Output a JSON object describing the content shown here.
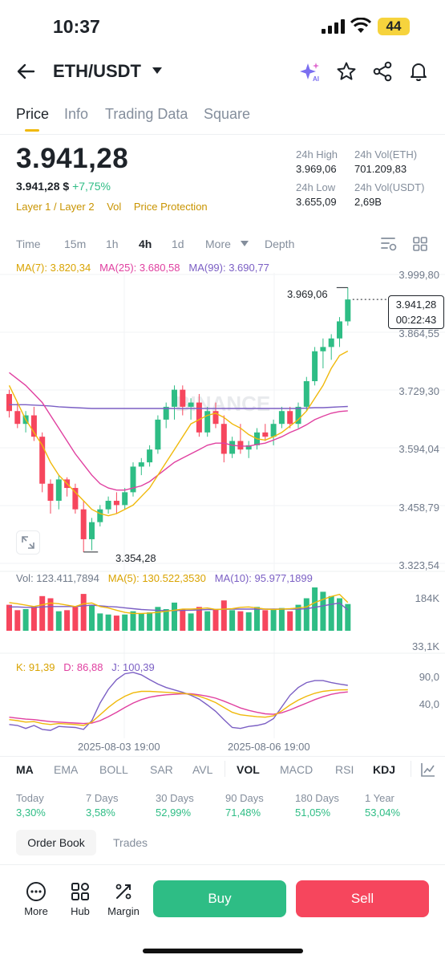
{
  "status_bar": {
    "time": "10:37",
    "battery": "44"
  },
  "header": {
    "pair": "ETH/USDT"
  },
  "tabs": [
    {
      "label": "Price",
      "active": true
    },
    {
      "label": "Info",
      "active": false
    },
    {
      "label": "Trading Data",
      "active": false
    },
    {
      "label": "Square",
      "active": false
    }
  ],
  "price": {
    "last": "3.941,28",
    "fiat": "3.941,28 $",
    "change": "+7,75%",
    "tags": [
      "Layer 1 / Layer 2",
      "Vol",
      "Price Protection"
    ]
  },
  "stats": {
    "high_label": "24h High",
    "high": "3.969,06",
    "vol_eth_label": "24h Vol(ETH)",
    "vol_eth": "701.209,83",
    "low_label": "24h Low",
    "low": "3.655,09",
    "vol_usdt_label": "24h Vol(USDT)",
    "vol_usdt": "2,69B"
  },
  "intervals": [
    "Time",
    "15m",
    "1h",
    "4h",
    "1d",
    "More",
    "Depth"
  ],
  "active_interval": "4h",
  "ma_legend": {
    "ma7": "MA(7): 3.820,34",
    "ma25": "MA(25): 3.680,58",
    "ma99": "MA(99): 3.690,77"
  },
  "vol_legend": {
    "vol": "Vol: 123.411,7894",
    "ma5": "MA(5): 130.522,3530",
    "ma10": "MA(10): 95.977,1899"
  },
  "kdj_legend": {
    "k": "K: 91,39",
    "d": "D: 86,88",
    "j": "J: 100,39"
  },
  "price_axis": [
    "3.999,80",
    "3.864,55",
    "3.729,30",
    "3.594,04",
    "3.458,79",
    "3.323,54"
  ],
  "vol_axis": [
    "184K",
    "33,1K"
  ],
  "kdj_axis": [
    "90,0",
    "40,0"
  ],
  "time_axis": [
    "2025-08-03 19:00",
    "2025-08-06 19:00"
  ],
  "chart_labels": {
    "high_mark": "3.969,06",
    "low_mark": "3.354,28",
    "current_price": "3.941,28",
    "countdown": "00:22:43"
  },
  "watermark": "BINANCE",
  "indicators": [
    "MA",
    "EMA",
    "BOLL",
    "SAR",
    "AVL",
    "VOL",
    "MACD",
    "RSI",
    "KDJ"
  ],
  "indicators_active": [
    "MA",
    "VOL",
    "KDJ"
  ],
  "performance": [
    {
      "label": "Today",
      "value": "3,30%"
    },
    {
      "label": "7 Days",
      "value": "3,58%"
    },
    {
      "label": "30 Days",
      "value": "52,99%"
    },
    {
      "label": "90 Days",
      "value": "71,48%"
    },
    {
      "label": "180 Days",
      "value": "51,05%"
    },
    {
      "label": "1 Year",
      "value": "53,04%"
    }
  ],
  "book_tabs": {
    "order_book": "Order Book",
    "trades": "Trades"
  },
  "bottom": {
    "more": "More",
    "hub": "Hub",
    "margin": "Margin",
    "buy": "Buy",
    "sell": "Sell"
  },
  "colors": {
    "up": "#2ebd85",
    "down": "#f6465d",
    "ma7": "#f0b90b",
    "ma25": "#e040a0",
    "ma99": "#7b5fc4",
    "accent": "#f0b90b"
  },
  "chart_data": {
    "type": "candlestick",
    "interval": "4h",
    "ylim": [
      3323.54,
      3999.8
    ],
    "candles": [
      [
        3720,
        3730,
        3665,
        3680
      ],
      [
        3680,
        3700,
        3640,
        3650
      ],
      [
        3650,
        3680,
        3630,
        3670
      ],
      [
        3670,
        3690,
        3610,
        3620
      ],
      [
        3620,
        3630,
        3490,
        3510
      ],
      [
        3510,
        3520,
        3440,
        3470
      ],
      [
        3470,
        3530,
        3450,
        3520
      ],
      [
        3520,
        3525,
        3480,
        3500
      ],
      [
        3500,
        3510,
        3440,
        3450
      ],
      [
        3450,
        3470,
        3350,
        3380
      ],
      [
        3380,
        3430,
        3354.28,
        3420
      ],
      [
        3420,
        3460,
        3410,
        3450
      ],
      [
        3450,
        3480,
        3440,
        3470
      ],
      [
        3470,
        3490,
        3440,
        3460
      ],
      [
        3460,
        3500,
        3450,
        3490
      ],
      [
        3490,
        3560,
        3480,
        3550
      ],
      [
        3550,
        3570,
        3530,
        3560
      ],
      [
        3560,
        3600,
        3550,
        3590
      ],
      [
        3590,
        3670,
        3580,
        3660
      ],
      [
        3660,
        3700,
        3640,
        3690
      ],
      [
        3690,
        3740,
        3660,
        3730
      ],
      [
        3730,
        3740,
        3670,
        3690
      ],
      [
        3690,
        3710,
        3660,
        3700
      ],
      [
        3700,
        3720,
        3620,
        3630
      ],
      [
        3630,
        3690,
        3620,
        3680
      ],
      [
        3680,
        3700,
        3640,
        3650
      ],
      [
        3650,
        3670,
        3560,
        3580
      ],
      [
        3580,
        3620,
        3570,
        3610
      ],
      [
        3610,
        3650,
        3580,
        3590
      ],
      [
        3590,
        3610,
        3570,
        3600
      ],
      [
        3600,
        3640,
        3590,
        3630
      ],
      [
        3630,
        3650,
        3610,
        3620
      ],
      [
        3620,
        3660,
        3600,
        3650
      ],
      [
        3650,
        3690,
        3640,
        3680
      ],
      [
        3680,
        3690,
        3640,
        3650
      ],
      [
        3650,
        3700,
        3640,
        3690
      ],
      [
        3690,
        3760,
        3680,
        3750
      ],
      [
        3750,
        3830,
        3740,
        3820
      ],
      [
        3820,
        3850,
        3780,
        3830
      ],
      [
        3830,
        3860,
        3800,
        3850
      ],
      [
        3850,
        3900,
        3830,
        3890
      ],
      [
        3890,
        3969.06,
        3880,
        3941.28
      ]
    ],
    "ma7": [
      3740,
      3700,
      3660,
      3630,
      3600,
      3560,
      3530,
      3510,
      3490,
      3470,
      3450,
      3440,
      3435,
      3440,
      3450,
      3460,
      3480,
      3500,
      3530,
      3560,
      3590,
      3620,
      3650,
      3660,
      3670,
      3675,
      3665,
      3650,
      3640,
      3625,
      3615,
      3612,
      3620,
      3630,
      3645,
      3660,
      3680,
      3710,
      3740,
      3780,
      3810,
      3820.34
    ],
    "ma25": [
      3770,
      3755,
      3740,
      3720,
      3700,
      3670,
      3640,
      3610,
      3580,
      3555,
      3530,
      3510,
      3500,
      3495,
      3495,
      3500,
      3505,
      3515,
      3530,
      3545,
      3560,
      3570,
      3580,
      3590,
      3600,
      3605,
      3605,
      3600,
      3598,
      3598,
      3602,
      3605,
      3612,
      3620,
      3630,
      3638,
      3648,
      3660,
      3668,
      3675,
      3679,
      3680.58
    ],
    "ma99": [
      3695,
      3695,
      3695,
      3694,
      3693,
      3692,
      3690,
      3689,
      3688,
      3687,
      3686,
      3686,
      3686,
      3686,
      3686,
      3686,
      3686,
      3686,
      3686,
      3686,
      3686,
      3686,
      3686,
      3686,
      3686,
      3686,
      3686,
      3686,
      3686,
      3686,
      3686,
      3686,
      3686,
      3686,
      3686,
      3686,
      3687,
      3688,
      3688,
      3689,
      3690,
      3690.77
    ],
    "volume": [
      120,
      95,
      100,
      110,
      160,
      150,
      90,
      95,
      110,
      170,
      120,
      80,
      75,
      70,
      75,
      90,
      80,
      85,
      110,
      100,
      130,
      100,
      80,
      110,
      90,
      100,
      140,
      95,
      90,
      85,
      110,
      95,
      100,
      105,
      90,
      120,
      150,
      200,
      180,
      160,
      150,
      123.4
    ],
    "vol_ma5": [
      130,
      125,
      118,
      112,
      120,
      128,
      125,
      118,
      112,
      125,
      128,
      112,
      105,
      95,
      85,
      80,
      80,
      82,
      85,
      90,
      95,
      100,
      100,
      102,
      105,
      98,
      100,
      102,
      108,
      110,
      105,
      100,
      98,
      100,
      102,
      105,
      110,
      130,
      145,
      158,
      168,
      130.5
    ],
    "vol_ma10": [
      110,
      110,
      108,
      108,
      110,
      112,
      112,
      112,
      112,
      115,
      118,
      115,
      112,
      110,
      106,
      102,
      98,
      96,
      94,
      93,
      93,
      94,
      95,
      96,
      98,
      98,
      99,
      100,
      100,
      100,
      100,
      100,
      100,
      100,
      100,
      100,
      102,
      108,
      115,
      122,
      128,
      96.0
    ],
    "kdj_k": [
      30,
      28,
      25,
      26,
      22,
      20,
      22,
      21,
      20,
      18,
      25,
      40,
      55,
      68,
      78,
      85,
      88,
      88,
      87,
      86,
      85,
      84,
      82,
      78,
      72,
      65,
      55,
      45,
      40,
      38,
      36,
      35,
      38,
      48,
      60,
      70,
      78,
      84,
      88,
      90,
      91,
      91.39
    ],
    "kdj_d": [
      35,
      33,
      31,
      30,
      28,
      26,
      25,
      24,
      23,
      22,
      23,
      28,
      36,
      45,
      55,
      64,
      71,
      76,
      79,
      81,
      82,
      83,
      83,
      81,
      78,
      74,
      68,
      61,
      54,
      49,
      45,
      42,
      41,
      44,
      50,
      57,
      64,
      71,
      77,
      82,
      85,
      86.88
    ],
    "kdj_j": [
      20,
      18,
      12,
      18,
      10,
      8,
      16,
      15,
      14,
      10,
      28,
      64,
      92,
      112,
      124,
      127,
      122,
      112,
      103,
      96,
      91,
      86,
      80,
      72,
      60,
      47,
      30,
      14,
      12,
      16,
      18,
      22,
      32,
      56,
      80,
      96,
      106,
      110,
      110,
      106,
      103,
      100.39
    ]
  }
}
